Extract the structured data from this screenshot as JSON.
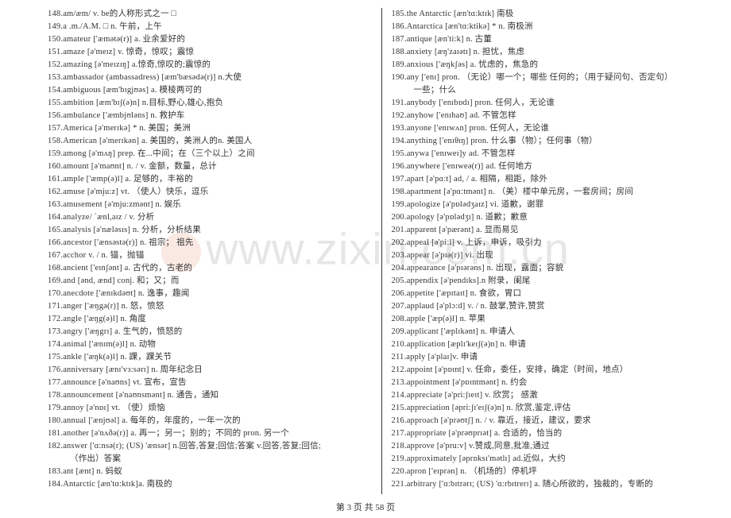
{
  "watermark": "www.zixin.com.cn",
  "footer": "第 3 页 共 58 页",
  "left_entries": [
    {
      "num": "148.",
      "text": "am/æm/ v. be的人称形式之一  □"
    },
    {
      "num": "149.",
      "text": "a .m./A.M. □ n. 午前，上午"
    },
    {
      "num": "150.",
      "text": "amateur ['æmətə(r)] a. 业余爱好的"
    },
    {
      "num": "151.",
      "text": "amaze [ə'meɪz] v. 惊奇，惊叹；震惊"
    },
    {
      "num": "152.",
      "text": "amazing [ə'meɪzɪŋ] a.惊奇,惊叹的;震惊的"
    },
    {
      "num": "153.",
      "text": "ambassador (ambassadress) [æm'bæsədə(r)] n.大使"
    },
    {
      "num": "154.",
      "text": "ambiguous [æm'bɪgjʊəs] a. 模棱两可的"
    },
    {
      "num": "155.",
      "text": "ambition [æm'bɪʃ(ə)n] n.目标,野心,雄心,抱负"
    },
    {
      "num": "156.",
      "text": "ambulance ['æmbjʊləns] n. 救护车"
    },
    {
      "num": "157.",
      "text": "America [ə'merɪkə] * n. 美国；美洲"
    },
    {
      "num": "158.",
      "text": "American [ə'merɪkən] a. 美国的，美洲人的n. 美国人"
    },
    {
      "num": "159.",
      "text": "among [ə'mʌŋ] prep. 在...中间；在（三个以上）之间"
    },
    {
      "num": "160.",
      "text": "amount [ə'maʊnt] n. / v. 金额，数量，总计"
    },
    {
      "num": "161.",
      "text": "ample ['æmp(ə)l] a. 足够的，丰裕的"
    },
    {
      "num": "162.",
      "text": "amuse [ə'mju:z] vt. （使人）快乐，逗乐"
    },
    {
      "num": "163.",
      "text": "amusement [ə'mju:zmənt] n. 娱乐"
    },
    {
      "num": "164.",
      "text": "analyze/ `ænl,aɪz /  v.  分析"
    },
    {
      "num": "165.",
      "text": "analysis [ə'næləsɪs] n. 分析，分析结果"
    },
    {
      "num": "166.",
      "text": "ancestor ['ænsəstə(r)] n. 祖宗；  祖先"
    },
    {
      "num": "167.",
      "text": "acchor v. / n.  锚，抛锚"
    },
    {
      "num": "168.",
      "text": "ancient ['eɪnʃənt] a. 古代的，古老的"
    },
    {
      "num": "169.",
      "text": "and [ənd, ænd] conj. 和；又；而"
    },
    {
      "num": "170.",
      "text": "anecdote ['ænɪkdəʊt] n. 逸事，趣闻"
    },
    {
      "num": "171.",
      "text": "anger ['æŋgə(r)] n. 怒，愤怒"
    },
    {
      "num": "172.",
      "text": "angle ['æŋg(ə)l] n. 角度"
    },
    {
      "num": "173.",
      "text": "angry ['æŋgrɪ] a. 生气的，愤怒的"
    },
    {
      "num": "174.",
      "text": "animal ['ænɪm(ə)l] n. 动物"
    },
    {
      "num": "175.",
      "text": "ankle ['æŋk(ə)l] n. 踝，踝关节"
    },
    {
      "num": "176.",
      "text": "anniversary [ænɪ'vɜ:sərɪ] n. 周年纪念日"
    },
    {
      "num": "177.",
      "text": "announce [ə'naʊns] vt. 宣布，宣告"
    },
    {
      "num": "178.",
      "text": "announcement [ə'naʊnsmənt] n. 通告，通知"
    },
    {
      "num": "179.",
      "text": "annoy [ə'nɒɪ] vt. （使）烦恼"
    },
    {
      "num": "180.",
      "text": "annual ['ænjʊəl] a. 每年的，年度的，一年一次的"
    },
    {
      "num": "181.",
      "text": "another [ə'nʌðə(r)] a. 再一；另一；别的；不同的    pron. 另一个"
    },
    {
      "num": "182.",
      "text": "answer ['ɑ:nsə(r); (US) 'ænsər] n.回答,答复;回信;答案 v.回答,答复;回信;"
    },
    {
      "num": "",
      "text": "（作出）答案",
      "indent": true
    },
    {
      "num": "183.",
      "text": "ant [ænt] n. 蚂蚁"
    },
    {
      "num": "184.",
      "text": "Antarctic [æn'tɑ:ktɪk]a. 南极的"
    }
  ],
  "right_entries": [
    {
      "num": "185.",
      "text": "the Antarctic [æn'tɑ:ktɪk]  南极"
    },
    {
      "num": "186.",
      "text": "Antarctica [æn'tɑ:ktikə]  * n. 南极洲"
    },
    {
      "num": "187.",
      "text": "antique [æn'ti:k] n. 古董"
    },
    {
      "num": "188.",
      "text": "anxiety [æŋ'zaɪətɪ] n. 担忧，焦虑"
    },
    {
      "num": "189.",
      "text": "anxious ['æŋkʃəs] a. 忧虑的，焦急的"
    },
    {
      "num": "190.",
      "text": "any ['enɪ] pron. （无论）哪一个；哪些 任何的；（用于疑问句、否定句）"
    },
    {
      "num": "",
      "text": "一些；什么",
      "indent": true
    },
    {
      "num": "191.",
      "text": "anybody ['enɪbɒdɪ] pron. 任何人，无论谁"
    },
    {
      "num": "192.",
      "text": "anyhow ['enɪhaʊ] ad. 不管怎样"
    },
    {
      "num": "193.",
      "text": "anyone ['enɪwʌn] pron. 任何人，无论谁"
    },
    {
      "num": "194.",
      "text": "anything ['enɪθɪŋ] pron. 什么事（物）；任何事（物）"
    },
    {
      "num": "195.",
      "text": "anywa ['enɪweɪ]y ad. 不管怎样"
    },
    {
      "num": "196.",
      "text": "anywhere ['enɪweə(r)] ad. 任何地方"
    },
    {
      "num": "197.",
      "text": "apart [ə'pɑ:t] ad, / a. 相隔，相距，除外"
    },
    {
      "num": "198.",
      "text": "apartment [ə'pɑ:tmənt] n. （美）楼中单元房，一套房间；房间"
    },
    {
      "num": "199.",
      "text": "apologize [ə'pɒlədʒaɪz] vi. 道歉，谢罪"
    },
    {
      "num": "200.",
      "text": "apology [ə'pɒlədʒɪ] n. 道歉；歉意"
    },
    {
      "num": "201.",
      "text": "apparent [ə'pærənt] a. 显而易见"
    },
    {
      "num": "202.",
      "text": "appeal [ə'pi:l] v. 上诉，申诉，吸引力"
    },
    {
      "num": "203.",
      "text": "appear [ə'pɪə(r)] vi. 出现"
    },
    {
      "num": "204.",
      "text": "appearance [ə'pɪərəns] n. 出现，露面；容貌"
    },
    {
      "num": "205.",
      "text": "appendix [ə'pendɪks].n 附录，阑尾"
    },
    {
      "num": "206.",
      "text": "appetite ['æpɪtaɪt] n. 食欲，胃口"
    },
    {
      "num": "207.",
      "text": "applaud [ə'plɔ:d] v. / n. 鼓掌,赞许,赞赏"
    },
    {
      "num": "208.",
      "text": "apple ['æp(ə)l] n. 苹果"
    },
    {
      "num": "209.",
      "text": "applicant ['æplɪkənt] n. 申请人"
    },
    {
      "num": "210.",
      "text": "application [æplɪ'keɪʃ(ə)n] n. 申请"
    },
    {
      "num": "211.",
      "text": "apply [ə'plaɪ]v. 申请"
    },
    {
      "num": "212.",
      "text": "appoint [ə'pɒɪnt] v. 任命，委任，安排，确定（时间，地点）"
    },
    {
      "num": "213.",
      "text": "appointment [ə'pɒɪntmənt] n. 约会"
    },
    {
      "num": "214.",
      "text": "appreciate [ə'pri:ʃɪeɪt] v. 欣赏；  感激"
    },
    {
      "num": "215.",
      "text": "appreciation [əpri:ʃɪ'eɪʃ(ə)n] n. 欣赏,鉴定,评估"
    },
    {
      "num": "216.",
      "text": "approach [ə'prəʊtʃ] n. / v. 靠近，接近，建议，要求"
    },
    {
      "num": "217.",
      "text": "appropriate [ə'prəʊprɪət] a. 合适的，恰当的"
    },
    {
      "num": "218.",
      "text": "approve [ə'pru:v] v.赞成,同意,批准,通过"
    },
    {
      "num": "219.",
      "text": "approximately [əprɒksɪ'mətlɪ] ad.近似，大约"
    },
    {
      "num": "220.",
      "text": "apron ['eɪprən] n. （机场的）停机坪"
    },
    {
      "num": "221.",
      "text": "arbitrary ['ɑ:bɪtrərɪ; (US) 'ɑ:rbɪtrerɪ] a. 随心所欲的，独裁的，专断的"
    }
  ]
}
